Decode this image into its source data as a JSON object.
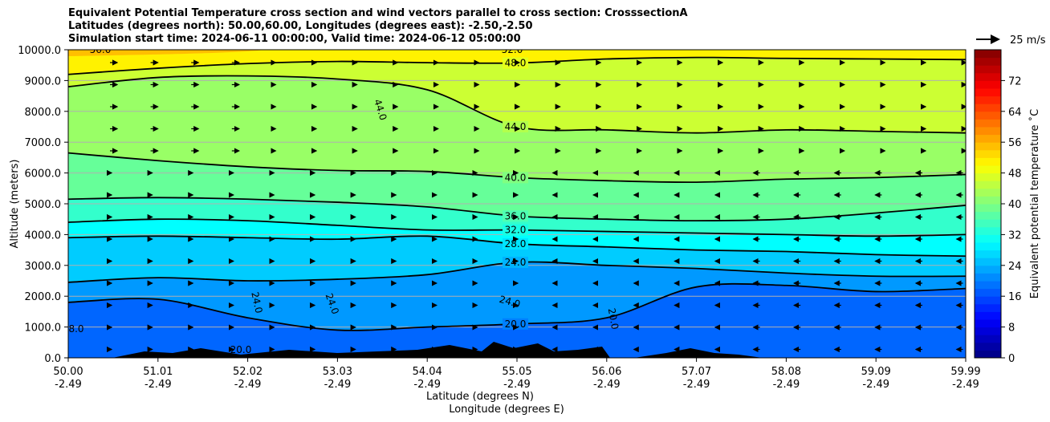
{
  "title_lines": [
    "Equivalent Potential Temperature cross section and wind vectors parallel to cross section: CrosssectionA",
    "Latitudes (degrees north): 50.00,60.00, Longitudes (degrees east): -2.50,-2.50",
    "Simulation start time: 2024-06-11 00:00:00, Valid time: 2024-06-12 05:00:00"
  ],
  "chart_data": {
    "type": "heatmap",
    "title": "Equivalent Potential Temperature cross section and wind vectors parallel to cross section: CrosssectionA",
    "xlabel": "Latitude (degrees N)",
    "xlabel2": "Longitude (degrees E)",
    "ylabel": "Altitude (meters)",
    "ylim": [
      0,
      10000
    ],
    "yticks": [
      "0.0",
      "1000.0",
      "2000.0",
      "3000.0",
      "4000.0",
      "5000.0",
      "6000.0",
      "7000.0",
      "8000.0",
      "9000.0",
      "10000.0"
    ],
    "x_lat_ticks": [
      "50.00",
      "51.01",
      "52.02",
      "53.03",
      "54.04",
      "55.05",
      "56.06",
      "57.07",
      "58.08",
      "59.09",
      "59.99"
    ],
    "x_lon_ticks": [
      "-2.49",
      "-2.49",
      "-2.49",
      "-2.49",
      "-2.49",
      "-2.49",
      "-2.49",
      "-2.49",
      "-2.49",
      "-2.49",
      "-2.49"
    ],
    "colorbar_label": "Equivalent potential temperature ˚C",
    "colorbar_range": [
      0,
      80
    ],
    "colorbar_ticks": [
      "0",
      "8",
      "16",
      "24",
      "32",
      "40",
      "48",
      "56",
      "64",
      "72"
    ],
    "wind_key_label": "25 m/s",
    "contour_levels": [
      20,
      24,
      28,
      32,
      36,
      40,
      44,
      48,
      52,
      56
    ],
    "contours": [
      {
        "level": 48,
        "label": "48.0",
        "alt": [
          9200,
          9400,
          9550,
          9620,
          9580,
          9570,
          9700,
          9750,
          9720,
          9700,
          9680
        ]
      },
      {
        "level": 44,
        "label": "44.0",
        "alt": [
          8800,
          9100,
          9150,
          9050,
          8700,
          7500,
          7400,
          7300,
          7400,
          7350,
          7300
        ]
      },
      {
        "level": 40,
        "label": "40.0",
        "alt": [
          6650,
          6400,
          6200,
          6080,
          6050,
          5850,
          5750,
          5700,
          5800,
          5850,
          5950
        ]
      },
      {
        "level": 36,
        "label": "36.0",
        "alt": [
          5150,
          5200,
          5150,
          5050,
          4900,
          4600,
          4500,
          4450,
          4500,
          4700,
          4950
        ]
      },
      {
        "level": 32,
        "label": "32.0",
        "alt": [
          4400,
          4500,
          4450,
          4300,
          4150,
          4150,
          4100,
          4050,
          4000,
          3950,
          4000
        ]
      },
      {
        "level": 28,
        "label": "28.0",
        "alt": [
          3900,
          3950,
          3900,
          3850,
          3950,
          3700,
          3600,
          3500,
          3450,
          3350,
          3300
        ]
      },
      {
        "level": 24,
        "label": "24.0",
        "alt": [
          2450,
          2600,
          2500,
          2550,
          2700,
          3100,
          3000,
          2900,
          2750,
          2650,
          2650
        ]
      },
      {
        "level": 20,
        "label": "20.0",
        "alt": [
          1800,
          1900,
          1300,
          900,
          1000,
          1100,
          1300,
          2300,
          2350,
          2150,
          2250
        ]
      }
    ],
    "extra_labels": [
      "44.0",
      "52.0",
      "56.0",
      "24.0",
      "24.0",
      "24.0",
      "20.0",
      "8.0",
      "20.0"
    ]
  }
}
